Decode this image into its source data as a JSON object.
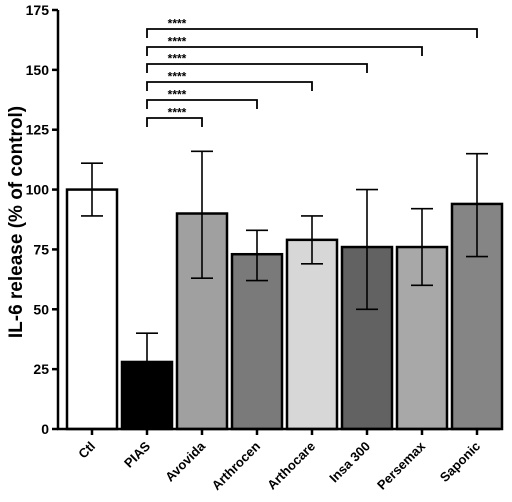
{
  "chart_data": {
    "type": "bar",
    "categories": [
      "Ctl",
      "PIAS",
      "Avovida",
      "Arthrocen",
      "Arthocare",
      "Insa 300",
      "Persemax",
      "Saponic"
    ],
    "values": [
      100,
      28,
      90,
      73,
      79,
      76,
      76,
      94
    ],
    "error_low": [
      89,
      17,
      63,
      62,
      69,
      50,
      60,
      72
    ],
    "error_high": [
      111,
      40,
      116,
      83,
      89,
      100,
      92,
      115
    ],
    "bar_colors": [
      "#ffffff",
      "#000000",
      "#a0a0a0",
      "#7a7a7a",
      "#d7d7d7",
      "#626262",
      "#a8a8a8",
      "#858585"
    ],
    "ylabel": "IL-6 release (% of control)",
    "xlabel": "",
    "ylim": [
      0,
      175
    ],
    "yticks": [
      0,
      25,
      50,
      75,
      100,
      125,
      150,
      175
    ],
    "grid": false,
    "significance": [
      {
        "from": "PIAS",
        "to": "Avovida",
        "label": "****"
      },
      {
        "from": "PIAS",
        "to": "Arthrocen",
        "label": "****"
      },
      {
        "from": "PIAS",
        "to": "Arthocare",
        "label": "****"
      },
      {
        "from": "PIAS",
        "to": "Insa 300",
        "label": "****"
      },
      {
        "from": "PIAS",
        "to": "Persemax",
        "label": "****"
      },
      {
        "from": "PIAS",
        "to": "Saponic",
        "label": "****"
      }
    ]
  }
}
